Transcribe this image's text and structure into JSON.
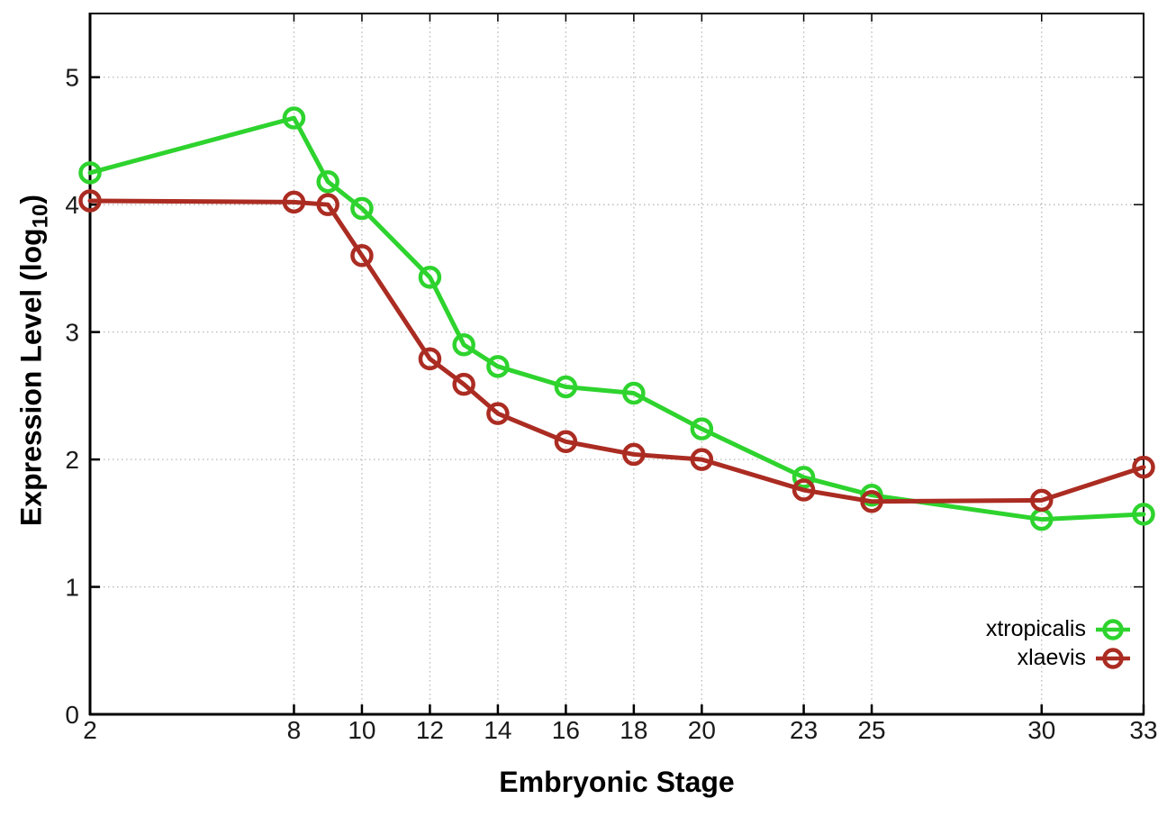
{
  "figure": {
    "background": "#ffffff",
    "xlabel": "Embryonic Stage",
    "ylabel_prefix": "Expression Level (log",
    "ylabel_sub": "10",
    "ylabel_suffix": ")"
  },
  "chart_data": {
    "type": "line",
    "title": "",
    "xlabel": "Embryonic Stage",
    "ylabel": "Expression Level (log10)",
    "x": [
      2,
      8,
      9,
      10,
      12,
      13,
      14,
      16,
      18,
      20,
      23,
      25,
      30,
      33
    ],
    "series": [
      {
        "name": "xtropicalis",
        "color": "#2ed32e",
        "marker": "open-circle",
        "values": [
          4.25,
          4.68,
          4.18,
          3.97,
          3.43,
          2.9,
          2.73,
          2.57,
          2.52,
          2.24,
          1.86,
          1.72,
          1.53,
          1.57
        ]
      },
      {
        "name": "xlaevis",
        "color": "#ab2c22",
        "marker": "open-circle",
        "values": [
          4.03,
          4.02,
          4.0,
          3.6,
          2.79,
          2.59,
          2.36,
          2.14,
          2.04,
          2.0,
          1.76,
          1.67,
          1.68,
          1.94
        ]
      }
    ],
    "xticks": [
      2,
      8,
      10,
      12,
      14,
      16,
      18,
      20,
      23,
      25,
      30,
      33
    ],
    "yticks": [
      0,
      1,
      2,
      3,
      4,
      5
    ],
    "xlim": [
      2,
      33
    ],
    "ylim": [
      0,
      5.5
    ],
    "grid": true,
    "grid_style": "dotted",
    "grid_color": "#b8b8b8",
    "axis_color": "#000000",
    "tick_label_color": "#1a1a1a",
    "legend_position": "inside-bottom-right"
  }
}
